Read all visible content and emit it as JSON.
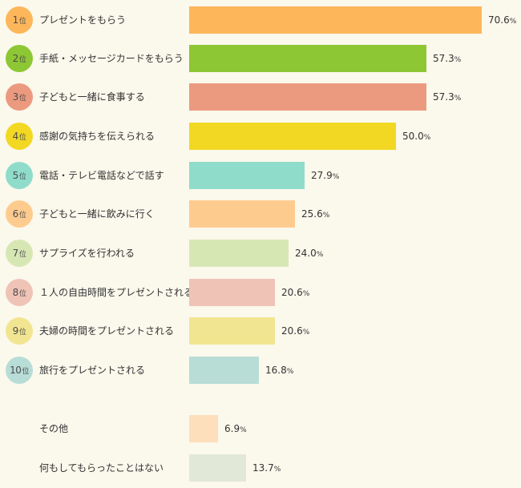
{
  "chart_data": {
    "type": "bar",
    "orientation": "horizontal",
    "rank_suffix": "位",
    "unit": "%",
    "xlim": [
      0,
      70.6
    ],
    "grid": false,
    "legend": "none",
    "items": [
      {
        "rank": "1",
        "label": "プレゼントをもらう",
        "value": 70.6,
        "display": "70.6",
        "color": "#fdb65a",
        "badge_color": "#fdb65a"
      },
      {
        "rank": "2",
        "label": "手紙・メッセージカードをもらう",
        "value": 57.3,
        "display": "57.3",
        "color": "#8dc733",
        "badge_color": "#8dc733"
      },
      {
        "rank": "3",
        "label": "子どもと一緒に食事する",
        "value": 57.3,
        "display": "57.3",
        "color": "#ec9a7f",
        "badge_color": "#ec9a7f"
      },
      {
        "rank": "4",
        "label": "感謝の気持ちを伝えられる",
        "value": 50.0,
        "display": "50.0",
        "color": "#f2d823",
        "badge_color": "#f2d823"
      },
      {
        "rank": "5",
        "label": "電話・テレビ電話などで話す",
        "value": 27.9,
        "display": "27.9",
        "color": "#90dccb",
        "badge_color": "#90dccb"
      },
      {
        "rank": "6",
        "label": "子どもと一緒に飲みに行く",
        "value": 25.6,
        "display": "25.6",
        "color": "#fecb8f",
        "badge_color": "#fecb8f"
      },
      {
        "rank": "7",
        "label": "サプライズを行われる",
        "value": 24.0,
        "display": "24.0",
        "color": "#d7e7b4",
        "badge_color": "#d7e7b4"
      },
      {
        "rank": "8",
        "label": "１人の自由時間をプレゼントされる",
        "value": 20.6,
        "display": "20.6",
        "color": "#f0c3b7",
        "badge_color": "#f0c3b7"
      },
      {
        "rank": "9",
        "label": "夫婦の時間をプレゼントされる",
        "value": 20.6,
        "display": "20.6",
        "color": "#f2e591",
        "badge_color": "#f2e591"
      },
      {
        "rank": "10",
        "label": "旅行をプレゼントされる",
        "value": 16.8,
        "display": "16.8",
        "color": "#b7ddd6",
        "badge_color": "#b7ddd6"
      },
      {
        "rank": "",
        "label": "その他",
        "value": 6.9,
        "display": "6.9",
        "color": "#fddfbc",
        "badge_color": ""
      },
      {
        "rank": "",
        "label": "何もしてもらったことはない",
        "value": 13.7,
        "display": "13.7",
        "color": "#e1e8d8",
        "badge_color": ""
      }
    ]
  }
}
